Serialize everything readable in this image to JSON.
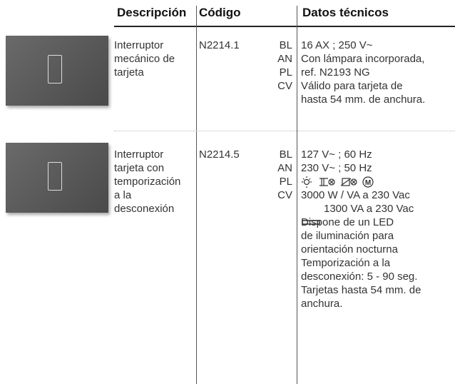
{
  "header": {
    "description": "Descripción",
    "code": "Código",
    "data": "Datos técnicos"
  },
  "rows": [
    {
      "description": [
        "Interruptor",
        "mecánico de",
        "tarjeta"
      ],
      "code": "N2214.1",
      "variants": [
        "BL",
        "AN",
        "PL",
        "CV"
      ],
      "data": [
        "16 AX ; 250 V~",
        "Con lámpara incorporada,",
        "ref. N2193 NG",
        "Válido para tarjeta de",
        "hasta 54 mm. de anchura."
      ]
    },
    {
      "description": [
        "Interruptor",
        "tarjeta con",
        "temporización",
        "a la",
        "desconexión"
      ],
      "code": "N2214.5",
      "variants": [
        "BL",
        "AN",
        "PL",
        "CV"
      ],
      "data": [
        "127 V~ ; 60 Hz",
        "230 V~ ; 50 Hz",
        null,
        "3000 W / VA a 230 Vac",
        "1300 VA a 230 Vac",
        "Dispone de un LED",
        "de iluminación para",
        "orientación nocturna",
        "Temporización a la",
        "desconexión: 5 - 90 seg.",
        "Tarjetas hasta 54 mm. de",
        "anchura."
      ]
    }
  ]
}
